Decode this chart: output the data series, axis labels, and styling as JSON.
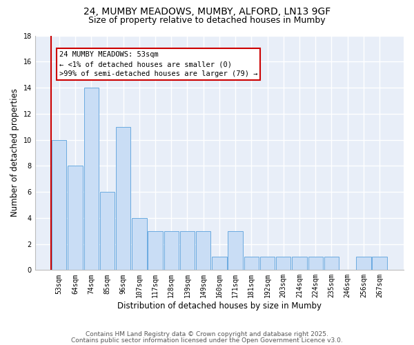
{
  "title1": "24, MUMBY MEADOWS, MUMBY, ALFORD, LN13 9GF",
  "title2": "Size of property relative to detached houses in Mumby",
  "xlabel": "Distribution of detached houses by size in Mumby",
  "ylabel": "Number of detached properties",
  "categories": [
    "53sqm",
    "64sqm",
    "74sqm",
    "85sqm",
    "96sqm",
    "107sqm",
    "117sqm",
    "128sqm",
    "139sqm",
    "149sqm",
    "160sqm",
    "171sqm",
    "181sqm",
    "192sqm",
    "203sqm",
    "214sqm",
    "224sqm",
    "235sqm",
    "246sqm",
    "256sqm",
    "267sqm"
  ],
  "values": [
    10,
    8,
    14,
    6,
    11,
    4,
    3,
    3,
    3,
    3,
    1,
    3,
    1,
    1,
    1,
    1,
    1,
    1,
    0,
    1,
    1
  ],
  "bar_color": "#c9ddf5",
  "bar_edge_color": "#6aaae0",
  "annotation_box_text": "24 MUMBY MEADOWS: 53sqm\n← <1% of detached houses are smaller (0)\n>99% of semi-detached houses are larger (79) →",
  "annotation_box_color": "#ffffff",
  "annotation_box_edge_color": "#cc0000",
  "red_line_x": -0.5,
  "ylim": [
    0,
    18
  ],
  "yticks": [
    0,
    2,
    4,
    6,
    8,
    10,
    12,
    14,
    16,
    18
  ],
  "background_color": "#e8eef8",
  "grid_color": "#ffffff",
  "footer1": "Contains HM Land Registry data © Crown copyright and database right 2025.",
  "footer2": "Contains public sector information licensed under the Open Government Licence v3.0.",
  "title_fontsize": 10,
  "subtitle_fontsize": 9,
  "axis_label_fontsize": 8.5,
  "tick_fontsize": 7,
  "annotation_fontsize": 7.5,
  "footer_fontsize": 6.5
}
